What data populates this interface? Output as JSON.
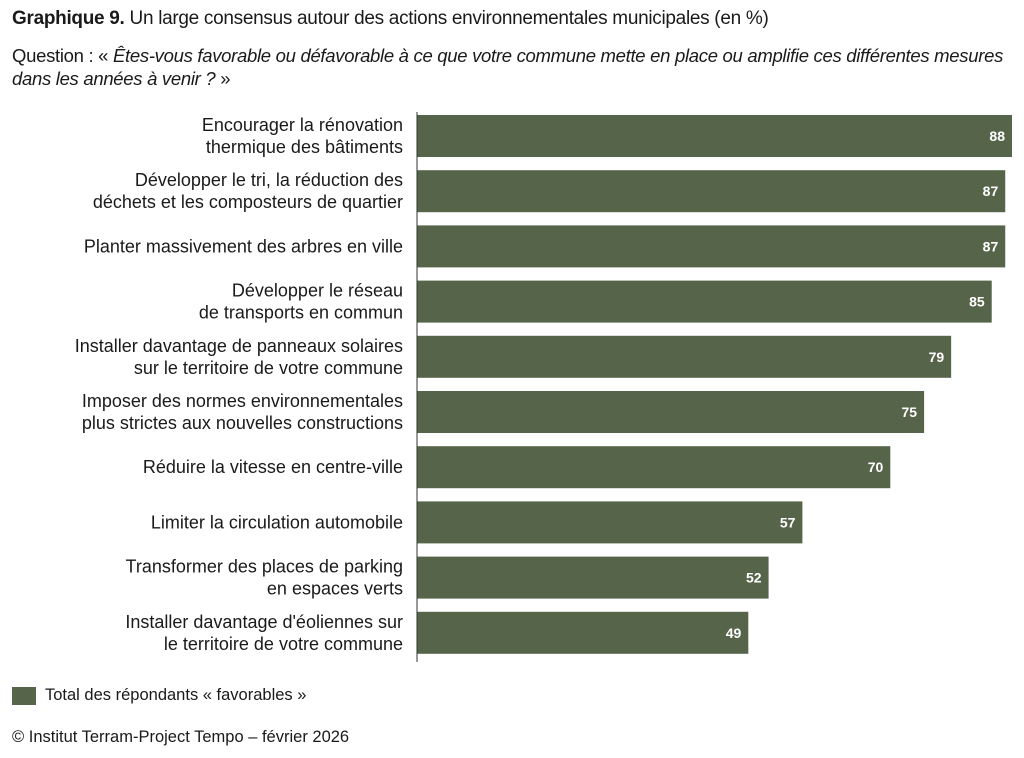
{
  "title_bold": "Graphique 9.",
  "title_rest": "Un large consensus autour des actions environnementales municipales (en %)",
  "question_prefix": "Question : «",
  "question_italic": "Êtes-vous favorable ou défavorable à ce que votre commune mette en place ou amplifie ces différentes mesures dans les années à venir ?",
  "question_suffix": "»",
  "legend_label": "Total des répondants « favorables »",
  "source": "© Institut Terram-Project Tempo – février 2026",
  "colors": {
    "bar": "#56654a",
    "label_text": "#ffffff"
  },
  "chart_data": {
    "type": "bar",
    "orientation": "horizontal",
    "title": "Un large consensus autour des actions environnementales municipales (en %)",
    "xlabel": "",
    "ylabel": "",
    "xlim": [
      0,
      88
    ],
    "grid": false,
    "legend": "bottom-left",
    "categories": [
      [
        "Encourager la rénovation",
        "thermique des bâtiments"
      ],
      [
        "Développer le tri, la réduction des",
        "déchets et les composteurs de quartier"
      ],
      [
        "Planter massivement des arbres en ville"
      ],
      [
        "Développer le réseau",
        "de transports en commun"
      ],
      [
        "Installer davantage de panneaux solaires",
        "sur le territoire de votre commune"
      ],
      [
        "Imposer des normes environnementales",
        "plus strictes aux nouvelles constructions"
      ],
      [
        "Réduire la vitesse en centre-ville"
      ],
      [
        "Limiter la circulation automobile"
      ],
      [
        "Transformer des places de parking",
        "en espaces verts"
      ],
      [
        "Installer davantage d'éoliennes sur",
        "le territoire de votre commune"
      ]
    ],
    "series": [
      {
        "name": "Total des répondants « favorables »",
        "values": [
          88,
          87,
          87,
          85,
          79,
          75,
          70,
          57,
          52,
          49
        ]
      }
    ]
  }
}
